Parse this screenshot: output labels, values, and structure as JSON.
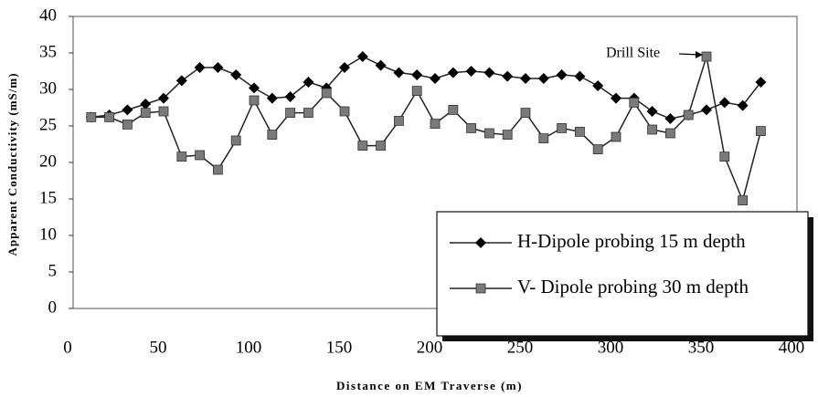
{
  "chart_data": {
    "type": "line",
    "xlabel": "Distance on EM Traverse (m)",
    "ylabel": "Apparent Conductivity (mS/m)",
    "x": [
      10,
      20,
      30,
      40,
      50,
      60,
      70,
      80,
      90,
      100,
      110,
      120,
      130,
      140,
      150,
      160,
      170,
      180,
      190,
      200,
      210,
      220,
      230,
      240,
      250,
      260,
      270,
      280,
      290,
      300,
      310,
      320,
      330,
      340,
      350,
      360,
      370,
      380
    ],
    "series": [
      {
        "name": "H-Dipole probing 15 m depth",
        "color": "#000000",
        "marker": "diamond",
        "values": [
          26.2,
          26.5,
          27.2,
          28,
          28.8,
          31.2,
          33,
          33,
          32,
          30.2,
          28.8,
          29,
          31,
          30.2,
          33,
          34.5,
          33.3,
          32.3,
          32,
          31.5,
          32.3,
          32.5,
          32.3,
          31.8,
          31.5,
          31.5,
          32,
          31.8,
          30.5,
          28.8,
          28.8,
          27,
          26,
          26.5,
          27.2,
          28.2,
          27.8,
          31
        ]
      },
      {
        "name": "V- Dipole probing 30 m depth",
        "color": "#7a7a7a",
        "marker": "square",
        "values": [
          26.2,
          26.2,
          25.2,
          26.8,
          27,
          20.8,
          21,
          19,
          23,
          28.5,
          23.8,
          26.8,
          26.8,
          29.5,
          27,
          22.3,
          22.3,
          25.7,
          29.8,
          25.3,
          27.2,
          24.7,
          24,
          23.8,
          26.8,
          23.3,
          24.7,
          24.2,
          21.8,
          23.5,
          28.2,
          24.5,
          24,
          26.5,
          34.5,
          20.8,
          14.8,
          24.3
        ]
      }
    ],
    "annotation": {
      "text": "Drill Site",
      "x": 350,
      "y": 34.5
    },
    "xlim": [
      0,
      400
    ],
    "xticks": [
      0,
      50,
      100,
      150,
      200,
      250,
      300,
      350,
      400
    ],
    "ylim": [
      0,
      40
    ],
    "yticks": [
      0,
      5,
      10,
      15,
      20,
      25,
      30,
      35,
      40
    ],
    "legend": "lower right"
  }
}
